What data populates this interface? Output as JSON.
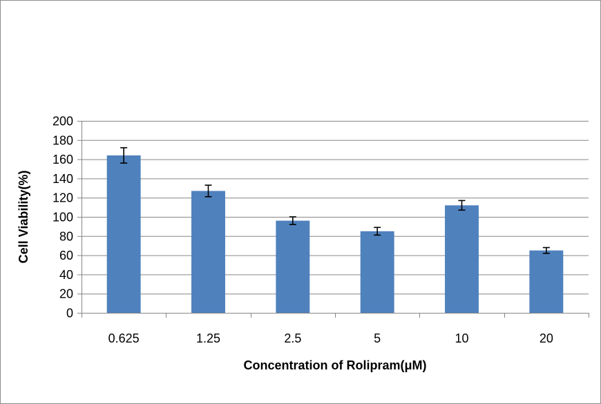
{
  "chart_data": {
    "type": "bar",
    "title": "",
    "xlabel": "Concentration of Rolipram(μM)",
    "ylabel": "Cell Viability(%)",
    "categories": [
      "0.625",
      "1.25",
      "2.5",
      "5",
      "10",
      "20"
    ],
    "values": [
      164,
      127,
      96,
      85,
      112,
      65
    ],
    "error": [
      8,
      6,
      4,
      4,
      5,
      3
    ],
    "ylim": [
      0,
      200
    ],
    "yticks": [
      0,
      20,
      40,
      60,
      80,
      100,
      120,
      140,
      160,
      180,
      200
    ],
    "grid": true,
    "legend": "none",
    "colors": {
      "bar": "#4f81bd",
      "grid": "#868686",
      "axis": "#868686",
      "error_bar": "#000000"
    }
  }
}
